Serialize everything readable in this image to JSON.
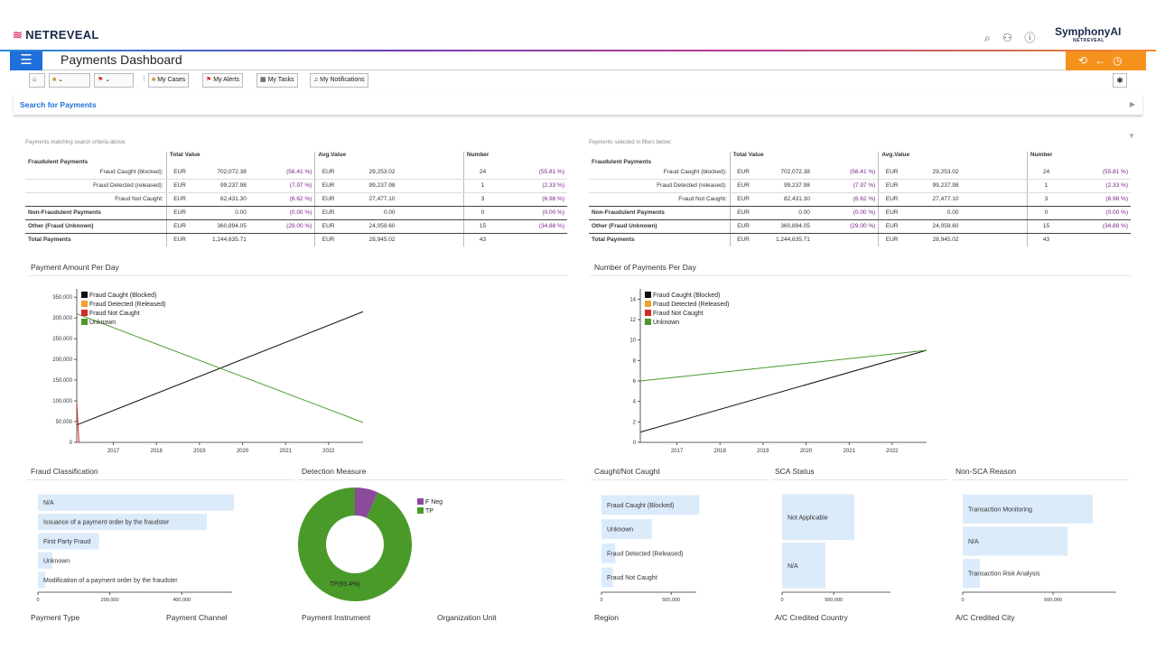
{
  "app": {
    "brand": "NETREVEAL",
    "partner_brand": "SymphonyAI",
    "partner_sub": "NETREVEAL",
    "page_title": "Payments Dashboard",
    "accent": "#1e6fd9",
    "orange": "#f5921e"
  },
  "toolbar": {
    "my_cases": "My Cases",
    "my_alerts": "My Alerts",
    "my_tasks": "My Tasks",
    "my_notifications": "My Notifications"
  },
  "search": {
    "label": "Search for Payments"
  },
  "summary_left": {
    "caption": "Payments matching search criteria above:",
    "headers": {
      "total": "Total Value",
      "avg": "Avg.Value",
      "number": "Number"
    },
    "fraudulent_label": "Fraudulent Payments",
    "rows": [
      {
        "label": "Fraud Caught (blocked):",
        "cur": "EUR",
        "total": "702,072.38",
        "tpct": "(56.41 %)",
        "cur2": "EUR",
        "avg": "29,253.02",
        "num": "24",
        "npct": "(55.81 %)"
      },
      {
        "label": "Fraud Detected (released):",
        "cur": "EUR",
        "total": "99,237.98",
        "tpct": "(7.97 %)",
        "cur2": "EUR",
        "avg": "99,237.98",
        "num": "1",
        "npct": "(2.33 %)"
      },
      {
        "label": "Fraud Not Caught:",
        "cur": "EUR",
        "total": "82,431.30",
        "tpct": "(6.62 %)",
        "cur2": "EUR",
        "avg": "27,477.10",
        "num": "3",
        "npct": "(6.98 %)"
      },
      {
        "label": "Non-Fraudulent Payments",
        "cur": "EUR",
        "total": "0.00",
        "tpct": "(0.00 %)",
        "cur2": "EUR",
        "avg": "0.00",
        "num": "0",
        "npct": "(0.00 %)"
      },
      {
        "label": "Other (Fraud Unknown)",
        "cur": "EUR",
        "total": "360,894.05",
        "tpct": "(29.00 %)",
        "cur2": "EUR",
        "avg": "24,059.60",
        "num": "15",
        "npct": "(34.88 %)"
      },
      {
        "label": "Total Payments",
        "cur": "EUR",
        "total": "1,244,635.71",
        "tpct": "",
        "cur2": "EUR",
        "avg": "28,945.02",
        "num": "43",
        "npct": ""
      }
    ]
  },
  "summary_right": {
    "caption": "Payments selected in filters below:",
    "headers": {
      "total": "Total Value",
      "avg": "Avg.Value",
      "number": "Number"
    },
    "fraudulent_label": "Fraudulent Payments",
    "rows": [
      {
        "label": "Fraud Caught (blocked):",
        "cur": "EUR",
        "total": "702,072.38",
        "tpct": "(56.41 %)",
        "cur2": "EUR",
        "avg": "29,253.02",
        "num": "24",
        "npct": "(55.81 %)"
      },
      {
        "label": "Fraud Detected (released):",
        "cur": "EUR",
        "total": "99,237.98",
        "tpct": "(7.97 %)",
        "cur2": "EUR",
        "avg": "99,237.98",
        "num": "1",
        "npct": "(2.33 %)"
      },
      {
        "label": "Fraud Not Caught:",
        "cur": "EUR",
        "total": "82,431.30",
        "tpct": "(6.62 %)",
        "cur2": "EUR",
        "avg": "27,477.10",
        "num": "3",
        "npct": "(6.98 %)"
      },
      {
        "label": "Non-Fraudulent Payments",
        "cur": "EUR",
        "total": "0.00",
        "tpct": "(0.00 %)",
        "cur2": "EUR",
        "avg": "0.00",
        "num": "0",
        "npct": "(0.00 %)"
      },
      {
        "label": "Other (Fraud Unknown)",
        "cur": "EUR",
        "total": "360,894.05",
        "tpct": "(29.00 %)",
        "cur2": "EUR",
        "avg": "24,059.60",
        "num": "15",
        "npct": "(34.88 %)"
      },
      {
        "label": "Total Payments",
        "cur": "EUR",
        "total": "1,244,635.71",
        "tpct": "",
        "cur2": "EUR",
        "avg": "28,945.02",
        "num": "43",
        "npct": ""
      }
    ]
  },
  "sections": {
    "amount_per_day": "Payment Amount Per Day",
    "number_per_day": "Number of Payments Per Day",
    "fraud_classification": "Fraud Classification",
    "detection_measure": "Detection Measure",
    "caught_not_caught": "Caught/Not Caught",
    "sca_status": "SCA Status",
    "non_sca_reason": "Non-SCA Reason",
    "payment_type": "Payment Type",
    "payment_channel": "Payment Channel",
    "payment_instrument": "Payment Instrument",
    "organization_unit": "Organization Unit",
    "region": "Region",
    "ac_credited_country": "A/C Credited Country",
    "ac_credited_city": "A/C Credited City"
  },
  "chart_data": [
    {
      "type": "line",
      "title": "Payment Amount Per Day",
      "legend": [
        "Fraud Caught (Blocked)",
        "Fraud Detected (Released)",
        "Fraud Not Caught",
        "Unknown"
      ],
      "colors": [
        "#111111",
        "#f0a030",
        "#d62728",
        "#4a9a2a"
      ],
      "xticks": [
        "2017",
        "2018",
        "2019",
        "2020",
        "2021",
        "2022"
      ],
      "yticks": [
        "0",
        "50,000",
        "100,000",
        "150,000",
        "200,000",
        "250,000",
        "300,000",
        "350,000"
      ],
      "ylim": [
        0,
        370000
      ],
      "xlim": [
        2016.15,
        2022.8
      ],
      "series": [
        {
          "name": "Fraud Caught (Blocked)",
          "x": [
            2016.15,
            2022.8
          ],
          "y": [
            42000,
            315000
          ]
        },
        {
          "name": "Unknown",
          "x": [
            2016.15,
            2022.8
          ],
          "y": [
            310000,
            48000
          ]
        },
        {
          "name": "Fraud Not Caught",
          "x": [
            2016.15,
            2016.2
          ],
          "y": [
            95000,
            0
          ]
        }
      ]
    },
    {
      "type": "line",
      "title": "Number of Payments Per Day",
      "legend": [
        "Fraud Caught (Blocked)",
        "Fraud Detected (Released)",
        "Fraud Not Caught",
        "Unknown"
      ],
      "colors": [
        "#111111",
        "#f0a030",
        "#d62728",
        "#4a9a2a"
      ],
      "xticks": [
        "2017",
        "2018",
        "2019",
        "2020",
        "2021",
        "2022"
      ],
      "yticks": [
        "0",
        "2",
        "4",
        "6",
        "8",
        "10",
        "12",
        "14"
      ],
      "ylim": [
        0,
        15
      ],
      "xlim": [
        2016.15,
        2022.8
      ],
      "series": [
        {
          "name": "Fraud Caught (Blocked)",
          "x": [
            2016.15,
            2022.8
          ],
          "y": [
            1,
            9
          ]
        },
        {
          "name": "Unknown",
          "x": [
            2016.15,
            2022.8
          ],
          "y": [
            6,
            9
          ]
        },
        {
          "name": "Fraud Not Caught",
          "x": [
            2016.15,
            2016.2
          ],
          "y": [
            1,
            1
          ]
        }
      ]
    },
    {
      "type": "bar",
      "title": "Fraud Classification",
      "categories": [
        "N/A",
        "Issuance of a payment order by the fraudster",
        "First Party Fraud",
        "Unknown",
        "Modification of a payment order by the fraudster"
      ],
      "values": [
        545000,
        470000,
        170000,
        40000,
        20000
      ],
      "xticks": [
        "0",
        "200,000",
        "400,000"
      ],
      "xlim": [
        0,
        540000
      ]
    },
    {
      "type": "pie",
      "title": "Detection Measure",
      "labels": [
        "F Neg",
        "TP"
      ],
      "values": [
        6.6,
        93.4
      ],
      "colors": [
        "#8b4a9a",
        "#4a9a2a"
      ],
      "slice_label": "TP(93.4%)"
    },
    {
      "type": "bar",
      "title": "Caught/Not Caught",
      "categories": [
        "Fraud Caught (Blocked)",
        "Unknown",
        "Fraud Detected (Released)",
        "Fraud Not Caught"
      ],
      "values": [
        702000,
        361000,
        99000,
        82000
      ],
      "xticks": [
        "0",
        "500,000"
      ],
      "xlim": [
        0,
        680000
      ]
    },
    {
      "type": "bar",
      "title": "SCA Status",
      "categories": [
        "Not Applicable",
        "N/A"
      ],
      "values": [
        700000,
        420000
      ],
      "xticks": [
        "0",
        "500,000"
      ],
      "xlim": [
        0,
        1050000
      ]
    },
    {
      "type": "bar",
      "title": "Non-SCA Reason",
      "categories": [
        "Transaction Monitoring",
        "N/A",
        "Transaction Risk Analysis"
      ],
      "values": [
        720000,
        580000,
        95000
      ],
      "xticks": [
        "0",
        "500,000"
      ],
      "xlim": [
        0,
        850000
      ]
    }
  ]
}
